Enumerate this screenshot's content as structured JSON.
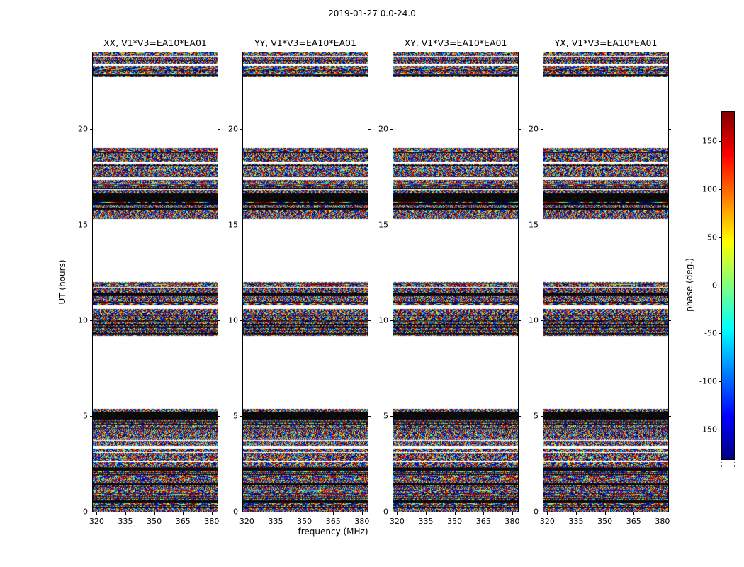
{
  "chart_data": {
    "type": "heatmap",
    "suptitle": "2019-01-27 0.0-24.0",
    "panels": [
      {
        "title": "XX, V1*V3=EA10*EA01",
        "polarization": "XX",
        "baseline": "V1*V3=EA10*EA01"
      },
      {
        "title": "YY, V1*V3=EA10*EA01",
        "polarization": "YY",
        "baseline": "V1*V3=EA10*EA01"
      },
      {
        "title": "XY, V1*V3=EA10*EA01",
        "polarization": "XY",
        "baseline": "V1*V3=EA10*EA01"
      },
      {
        "title": "YX, V1*V3=EA10*EA01",
        "polarization": "YX",
        "baseline": "V1*V3=EA10*EA01"
      }
    ],
    "xlabel": "frequency (MHz)",
    "ylabel": "UT (hours)",
    "xlim": [
      318,
      383
    ],
    "ylim": [
      0,
      24
    ],
    "xticks": [
      320,
      335,
      350,
      365,
      380
    ],
    "yticks": [
      0,
      5,
      10,
      15,
      20
    ],
    "colorbar": {
      "label": "phase (deg.)",
      "ticks": [
        150,
        100,
        50,
        0,
        -50,
        -100,
        -150
      ],
      "vmin": -180,
      "vmax": 180,
      "colormap": "jet"
    },
    "value_kind": "visibility phase fringes (noisy, full -180..180 deg range) in observed time blocks; white elsewhere",
    "time_bands": [
      {
        "start": 0.0,
        "end": 5.4
      },
      {
        "start": 9.2,
        "end": 12.0
      },
      {
        "start": 15.3,
        "end": 19.0
      },
      {
        "start": 22.75,
        "end": 24.0
      }
    ],
    "black_stripes": [
      [
        22.78,
        22.88
      ],
      [
        16.25,
        16.65
      ],
      [
        15.8,
        15.9
      ],
      [
        11.3,
        11.45
      ],
      [
        9.75,
        9.85
      ],
      [
        4.85,
        5.25
      ],
      [
        2.15,
        2.3
      ],
      [
        1.4,
        1.5
      ],
      [
        0.5,
        0.62
      ]
    ],
    "white_gaps": [
      [
        23.3,
        23.42
      ],
      [
        18.2,
        18.3
      ],
      [
        17.35,
        17.5
      ],
      [
        10.6,
        10.78
      ],
      [
        3.3,
        3.45
      ],
      [
        2.6,
        2.7
      ]
    ]
  }
}
